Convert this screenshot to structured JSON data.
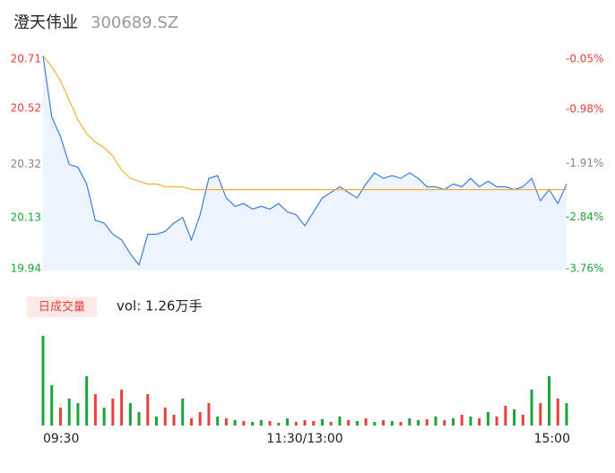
{
  "chart_data": [
    {
      "type": "line",
      "title": "澄天伟业",
      "subtitle": "300689.SZ",
      "x": [
        0,
        4,
        8,
        12,
        16,
        20,
        24,
        28,
        32,
        36,
        40,
        44,
        48,
        52,
        56,
        60,
        64,
        68,
        72,
        76,
        80,
        84,
        88,
        92,
        96,
        100,
        104,
        108,
        112,
        116,
        120,
        124,
        128,
        132,
        136,
        140,
        144,
        148,
        152,
        156,
        160,
        164,
        168,
        172,
        176,
        180,
        184,
        188,
        192,
        196,
        200,
        204,
        208,
        212,
        216,
        220,
        224,
        228,
        232,
        236,
        240
      ],
      "xlim": [
        0,
        240
      ],
      "series": [
        {
          "color": "#3d7fe0",
          "values": [
            20.71,
            20.49,
            20.42,
            20.32,
            20.31,
            20.25,
            20.12,
            20.11,
            20.07,
            20.05,
            20.0,
            19.96,
            20.07,
            20.07,
            20.08,
            20.11,
            20.13,
            20.05,
            20.14,
            20.27,
            20.28,
            20.2,
            20.17,
            20.18,
            20.16,
            20.17,
            20.16,
            20.18,
            20.15,
            20.14,
            20.1,
            20.15,
            20.2,
            20.22,
            20.24,
            20.22,
            20.2,
            20.25,
            20.29,
            20.27,
            20.28,
            20.27,
            20.29,
            20.27,
            20.24,
            20.24,
            20.23,
            20.25,
            20.24,
            20.27,
            20.24,
            20.26,
            20.24,
            20.24,
            20.23,
            20.24,
            20.27,
            20.19,
            20.23,
            20.18,
            20.25
          ]
        },
        {
          "color": "#f5b031",
          "values": [
            20.71,
            20.67,
            20.62,
            20.55,
            20.48,
            20.43,
            20.4,
            20.38,
            20.35,
            20.3,
            20.27,
            20.26,
            20.25,
            20.25,
            20.24,
            20.24,
            20.24,
            20.23,
            20.23,
            20.23,
            20.23,
            20.23,
            20.23,
            20.23,
            20.23,
            20.23,
            20.23,
            20.23,
            20.23,
            20.23,
            20.23,
            20.23,
            20.23,
            20.23,
            20.23,
            20.23,
            20.23,
            20.23,
            20.23,
            20.23,
            20.23,
            20.23,
            20.23,
            20.23,
            20.23,
            20.23,
            20.23,
            20.23,
            20.23,
            20.23,
            20.23,
            20.23,
            20.23,
            20.23,
            20.23,
            20.23,
            20.23,
            20.23,
            20.23,
            20.23,
            20.23
          ]
        }
      ],
      "ylim": [
        19.94,
        20.71
      ],
      "yticks": [
        20.71,
        20.52,
        20.32,
        20.13,
        19.94
      ],
      "y2lim": [
        -3.76,
        -0.05
      ],
      "y2ticks": [
        {
          "value": -0.05,
          "label": "-0.05%"
        },
        {
          "value": -0.98,
          "label": "-0.98%"
        },
        {
          "value": -1.91,
          "label": "-1.91%"
        },
        {
          "value": -2.84,
          "label": "-2.84%"
        },
        {
          "value": -3.76,
          "label": "-3.76%"
        }
      ],
      "tick_colors": [
        "#e8413c",
        "#e8413c",
        "#888888",
        "#1aa53a",
        "#1aa53a"
      ],
      "area_color": "#eef4fd"
    },
    {
      "type": "bar",
      "title": "日成交量",
      "annotation": "vol: 1.26万手",
      "x": [
        0,
        4,
        8,
        12,
        16,
        20,
        24,
        28,
        32,
        36,
        40,
        44,
        48,
        52,
        56,
        60,
        64,
        68,
        72,
        76,
        80,
        84,
        88,
        92,
        96,
        100,
        104,
        108,
        112,
        116,
        120,
        124,
        128,
        132,
        136,
        140,
        144,
        148,
        152,
        156,
        160,
        164,
        168,
        172,
        176,
        180,
        184,
        188,
        192,
        196,
        200,
        204,
        208,
        212,
        216,
        220,
        224,
        228,
        232,
        236,
        240
      ],
      "xlim": [
        0,
        240
      ],
      "xticks": [
        {
          "value": 0,
          "label": "09:30"
        },
        {
          "value": 120,
          "label": "11:30/13:00"
        },
        {
          "value": 240,
          "label": "15:00"
        }
      ],
      "values": [
        100,
        45,
        20,
        30,
        25,
        55,
        35,
        20,
        30,
        40,
        25,
        15,
        35,
        10,
        20,
        12,
        30,
        8,
        15,
        25,
        10,
        8,
        6,
        5,
        4,
        6,
        5,
        3,
        8,
        4,
        6,
        5,
        7,
        4,
        10,
        6,
        5,
        8,
        4,
        6,
        5,
        4,
        8,
        6,
        7,
        10,
        6,
        8,
        12,
        10,
        8,
        15,
        10,
        22,
        18,
        12,
        40,
        25,
        55,
        30,
        25
      ],
      "colors": [
        "#1aa53a",
        "#1aa53a",
        "#e8413c",
        "#1aa53a",
        "#1aa53a",
        "#1aa53a",
        "#e8413c",
        "#1aa53a",
        "#e8413c",
        "#e8413c",
        "#1aa53a",
        "#1aa53a",
        "#e8413c",
        "#1aa53a",
        "#e8413c",
        "#e8413c",
        "#1aa53a",
        "#e8413c",
        "#e8413c",
        "#e8413c",
        "#1aa53a",
        "#e8413c",
        "#1aa53a",
        "#e8413c",
        "#1aa53a",
        "#1aa53a",
        "#e8413c",
        "#1aa53a",
        "#1aa53a",
        "#e8413c",
        "#e8413c",
        "#e8413c",
        "#1aa53a",
        "#e8413c",
        "#1aa53a",
        "#e8413c",
        "#1aa53a",
        "#e8413c",
        "#1aa53a",
        "#e8413c",
        "#1aa53a",
        "#e8413c",
        "#1aa53a",
        "#1aa53a",
        "#e8413c",
        "#1aa53a",
        "#e8413c",
        "#1aa53a",
        "#e8413c",
        "#1aa53a",
        "#e8413c",
        "#1aa53a",
        "#e8413c",
        "#e8413c",
        "#1aa53a",
        "#e8413c",
        "#1aa53a",
        "#e8413c",
        "#1aa53a",
        "#e8413c",
        "#1aa53a"
      ],
      "ylim": [
        0,
        100
      ],
      "legend_background": "#fde9e7",
      "legend_color": "#e8413c"
    }
  ]
}
